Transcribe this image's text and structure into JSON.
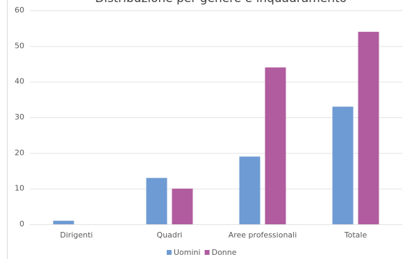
{
  "chart_data": {
    "type": "bar",
    "title": "Distribuzione per genere e inquadramento",
    "categories": [
      "Dirigenti",
      "Quadri",
      "Aree professionali",
      "Totale"
    ],
    "series": [
      {
        "name": "Uomini",
        "color": "#6f9bd4",
        "values": [
          1,
          13,
          19,
          33
        ]
      },
      {
        "name": "Donne",
        "color": "#b05c9e",
        "values": [
          0,
          10,
          44,
          54
        ]
      }
    ],
    "ylim": [
      0,
      60
    ],
    "yticks": [
      0,
      10,
      20,
      30,
      40,
      50,
      60
    ],
    "grid": true,
    "legend": "bottom"
  }
}
